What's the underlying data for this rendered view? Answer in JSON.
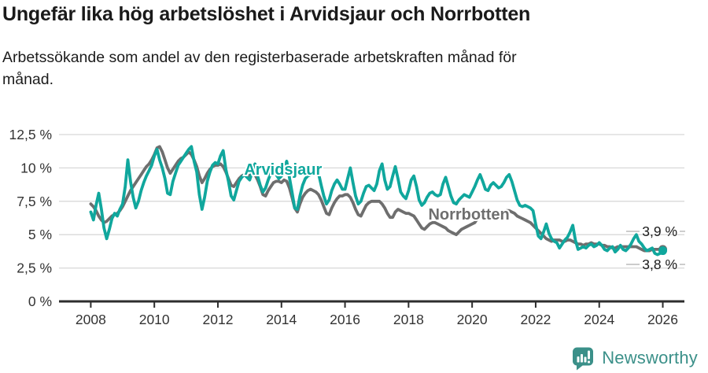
{
  "header": {
    "title": "Ungefär lika hög arbetslöshet i Arvidsjaur och Norrbotten",
    "subtitle": "Arbetssökande som andel av den registerbaserade arbetskraften månad för månad."
  },
  "footer": {
    "brand": "Newsworthy"
  },
  "colors": {
    "arvidsjaur": "#10a79d",
    "norrbotten": "#6e6e6e",
    "grid": "#d8d8d8",
    "leader": "#bcbcbc",
    "axis": "#2d2d2d",
    "tick_text": "#333333",
    "value_text": "#1a1a1a",
    "brand": "#3b9089"
  },
  "chart_data": {
    "type": "line",
    "title": "Ungefär lika hög arbetslöshet i Arvidsjaur och Norrbotten",
    "subtitle": "Arbetssökande som andel av den registerbaserade arbetskraften månad för månad.",
    "x_unit": "year-month",
    "x_start": 2008,
    "points_per_year": 12,
    "xlim": [
      2007.0,
      2026.68
    ],
    "ylim": [
      0,
      12.5
    ],
    "grid": true,
    "x_ticks": [
      2008,
      2010,
      2012,
      2014,
      2016,
      2018,
      2020,
      2022,
      2024,
      2026
    ],
    "y_ticks": [
      {
        "value": 12.5,
        "label": "12,5 %"
      },
      {
        "value": 10,
        "label": "10 %"
      },
      {
        "value": 7.5,
        "label": "7,5 %"
      },
      {
        "value": 5,
        "label": "5 %"
      },
      {
        "value": 2.5,
        "label": "2,5 %"
      },
      {
        "value": 0,
        "label": "0 %"
      }
    ],
    "series": [
      {
        "name": "Norrbotten",
        "color_key": "norrbotten",
        "end_label": "3,9 %",
        "end_label_value": 5.25,
        "label_pos": {
          "year": 2019.9,
          "value": 6.55
        },
        "values": [
          7.3,
          7.1,
          6.8,
          6.4,
          6.1,
          5.9,
          6.0,
          6.2,
          6.4,
          6.5,
          6.6,
          6.8,
          7.1,
          7.5,
          7.9,
          8.3,
          8.6,
          8.9,
          9.2,
          9.5,
          9.8,
          10.1,
          10.3,
          10.6,
          11.0,
          11.5,
          11.6,
          11.2,
          10.6,
          10.0,
          9.6,
          9.9,
          10.2,
          10.5,
          10.7,
          10.8,
          11.0,
          11.2,
          11.0,
          10.6,
          10.1,
          9.4,
          8.9,
          9.2,
          9.6,
          9.9,
          10.1,
          10.2,
          10.2,
          10.3,
          10.1,
          9.7,
          9.2,
          8.7,
          8.6,
          8.9,
          9.2,
          9.4,
          9.5,
          9.5,
          9.4,
          9.6,
          9.5,
          9.1,
          8.6,
          8.0,
          7.9,
          8.3,
          8.6,
          8.9,
          9.0,
          9.0,
          8.9,
          9.1,
          9.0,
          8.5,
          7.8,
          7.0,
          6.7,
          7.3,
          7.8,
          8.1,
          8.3,
          8.4,
          8.3,
          8.2,
          8.0,
          7.6,
          7.1,
          6.6,
          6.5,
          7.0,
          7.4,
          7.7,
          7.9,
          7.9,
          8.0,
          8.0,
          7.8,
          7.4,
          6.9,
          6.5,
          6.4,
          6.8,
          7.2,
          7.4,
          7.5,
          7.5,
          7.5,
          7.5,
          7.3,
          7.0,
          6.6,
          6.3,
          6.3,
          6.7,
          6.9,
          6.8,
          6.7,
          6.6,
          6.6,
          6.5,
          6.4,
          6.1,
          5.8,
          5.5,
          5.4,
          5.6,
          5.8,
          5.9,
          5.9,
          5.8,
          5.7,
          5.6,
          5.5,
          5.3,
          5.2,
          5.1,
          5.0,
          5.2,
          5.4,
          5.5,
          5.6,
          5.7,
          5.8,
          5.9,
          6.2,
          6.6,
          6.7,
          6.7,
          6.6,
          6.6,
          6.6,
          6.6,
          6.5,
          6.6,
          6.7,
          6.8,
          6.8,
          6.7,
          6.6,
          6.4,
          6.3,
          6.2,
          6.1,
          6.0,
          5.9,
          5.7,
          5.5,
          5.3,
          5.1,
          4.9,
          4.7,
          4.6,
          4.5,
          4.6,
          4.6,
          4.6,
          4.5,
          4.5,
          4.6,
          4.6,
          4.5,
          4.4,
          4.3,
          4.3,
          4.2,
          4.3,
          4.3,
          4.4,
          4.3,
          4.3,
          4.3,
          4.2,
          4.2,
          4.1,
          4.1,
          4.0,
          4.0,
          4.1,
          4.1,
          4.1,
          4.1,
          4.1,
          4.1,
          4.1,
          4.1,
          4.0,
          3.9,
          3.8,
          3.8,
          3.8,
          3.9,
          3.9,
          3.9,
          3.9,
          3.9
        ]
      },
      {
        "name": "Arvidsjaur",
        "color_key": "arvidsjaur",
        "end_label": "3,8 %",
        "end_label_value": 2.77,
        "label_pos": {
          "year": 2014.05,
          "value": 9.9
        },
        "values": [
          6.7,
          6.1,
          7.2,
          8.1,
          6.9,
          5.5,
          4.7,
          5.4,
          6.2,
          6.6,
          6.4,
          6.9,
          7.3,
          8.6,
          10.6,
          9.0,
          7.8,
          7.0,
          7.5,
          8.3,
          8.9,
          9.4,
          9.8,
          10.2,
          10.9,
          11.4,
          10.6,
          10.0,
          9.2,
          8.1,
          8.0,
          9.0,
          9.6,
          10.2,
          10.5,
          10.8,
          11.1,
          11.4,
          11.6,
          10.5,
          9.7,
          8.0,
          6.9,
          7.8,
          9.0,
          9.7,
          10.2,
          10.4,
          10.3,
          10.9,
          11.3,
          9.9,
          9.0,
          7.9,
          7.6,
          8.3,
          9.0,
          9.3,
          9.5,
          9.3,
          9.1,
          9.7,
          10.3,
          9.4,
          8.7,
          8.2,
          8.5,
          9.1,
          9.6,
          9.8,
          9.5,
          9.2,
          9.4,
          10.1,
          10.5,
          9.3,
          8.2,
          7.0,
          6.9,
          7.9,
          8.7,
          9.2,
          9.4,
          9.5,
          9.6,
          10.0,
          9.6,
          8.7,
          7.9,
          7.3,
          7.6,
          8.3,
          8.8,
          9.1,
          8.8,
          8.4,
          8.4,
          9.2,
          10.0,
          8.9,
          7.9,
          7.3,
          7.5,
          8.1,
          8.6,
          8.7,
          8.5,
          8.3,
          8.8,
          9.8,
          10.3,
          9.1,
          8.4,
          8.6,
          9.4,
          10.1,
          9.2,
          8.2,
          7.9,
          7.7,
          8.3,
          9.1,
          9.4,
          8.6,
          7.6,
          7.2,
          7.4,
          7.8,
          8.1,
          8.2,
          8.0,
          7.9,
          8.0,
          8.8,
          9.3,
          8.6,
          7.9,
          7.4,
          7.3,
          7.6,
          7.8,
          8.0,
          7.9,
          7.8,
          8.2,
          8.6,
          9.1,
          9.5,
          9.0,
          8.4,
          8.3,
          8.7,
          8.9,
          8.7,
          8.5,
          8.6,
          8.9,
          9.3,
          9.5,
          9.0,
          8.3,
          7.6,
          7.2,
          7.1,
          7.2,
          7.1,
          7.0,
          6.8,
          5.8,
          4.9,
          4.7,
          5.2,
          5.8,
          5.1,
          4.7,
          4.5,
          4.4,
          4.0,
          4.3,
          4.6,
          4.8,
          5.2,
          5.7,
          4.6,
          3.9,
          4.0,
          4.1,
          4.0,
          4.2,
          4.3,
          4.1,
          4.2,
          4.4,
          4.2,
          3.9,
          3.8,
          4.0,
          4.1,
          3.7,
          3.9,
          4.2,
          3.9,
          3.8,
          4.0,
          4.3,
          4.7,
          5.0,
          4.5,
          4.3,
          4.0,
          3.8,
          3.9,
          4.0,
          3.6,
          3.5,
          3.6,
          3.8
        ]
      }
    ],
    "legend_position": "inline-labels",
    "end_dots": true
  }
}
